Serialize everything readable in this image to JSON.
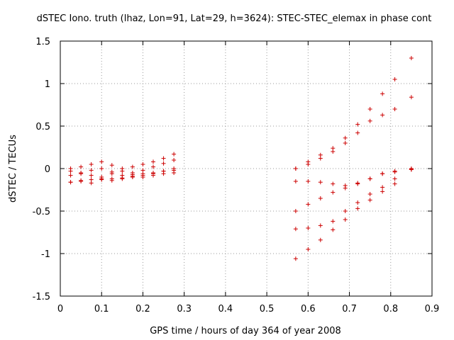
{
  "chart_data": {
    "type": "scatter",
    "title": "dSTEC Iono. truth (lhaz, Lon=91, Lat=29, h=3624): STEC-STEC_elemax in phase cont",
    "xlabel": "GPS time / hours of day 364 of year 2008",
    "ylabel": "dSTEC  / TECUs",
    "xlim": [
      0,
      0.9
    ],
    "ylim": [
      -1.5,
      1.5
    ],
    "xticks": [
      0,
      0.1,
      0.2,
      0.3,
      0.4,
      0.5,
      0.6,
      0.7,
      0.8,
      0.9
    ],
    "xtick_labels": [
      "0",
      "0.1",
      "0.2",
      "0.3",
      "0.4",
      "0.5",
      "0.6",
      "0.7",
      "0.8",
      "0.9"
    ],
    "yticks": [
      -1.5,
      -1,
      -0.5,
      0,
      0.5,
      1,
      1.5
    ],
    "ytick_labels": [
      "-1.5",
      "-1",
      "-0.5",
      "0",
      "0.5",
      "1",
      "1.5"
    ],
    "grid": true,
    "marker": "+",
    "marker_color": "#cc0000",
    "series": [
      {
        "x": [
          0.025,
          0.05,
          0.075,
          0.1,
          0.125,
          0.15,
          0.175,
          0.2,
          0.225,
          0.25,
          0.275
        ],
        "y": [
          0.0,
          0.02,
          0.05,
          0.08,
          0.04,
          0.0,
          0.02,
          0.05,
          0.08,
          0.12,
          0.17
        ]
      },
      {
        "x": [
          0.025,
          0.05,
          0.075,
          0.1,
          0.125,
          0.15,
          0.175,
          0.2,
          0.225,
          0.25,
          0.275
        ],
        "y": [
          -0.03,
          -0.06,
          -0.02,
          0.0,
          -0.04,
          -0.08,
          -0.05,
          -0.02,
          0.02,
          0.06,
          0.1
        ]
      },
      {
        "x": [
          0.025,
          0.05,
          0.075,
          0.1,
          0.125,
          0.15,
          0.175,
          0.2,
          0.225,
          0.25,
          0.275
        ],
        "y": [
          -0.08,
          -0.05,
          -0.08,
          -0.1,
          -0.06,
          -0.03,
          -0.07,
          -0.1,
          -0.06,
          -0.03,
          0.0
        ]
      },
      {
        "x": [
          0.025,
          0.05,
          0.075,
          0.1,
          0.125,
          0.15,
          0.175,
          0.2,
          0.225,
          0.25,
          0.275
        ],
        "y": [
          -0.16,
          -0.14,
          -0.17,
          -0.12,
          -0.14,
          -0.11,
          -0.09,
          -0.06,
          -0.05,
          -0.03,
          -0.02
        ]
      },
      {
        "x": [
          0.025,
          0.05,
          0.075,
          0.1,
          0.125,
          0.15,
          0.175,
          0.2,
          0.225,
          0.25,
          0.275
        ],
        "y": [
          -0.16,
          -0.15,
          -0.13,
          -0.13,
          -0.12,
          -0.12,
          -0.1,
          -0.08,
          -0.08,
          -0.06,
          -0.05
        ]
      },
      {
        "x": [
          0.57,
          0.6,
          0.63,
          0.66,
          0.69,
          0.72,
          0.75,
          0.78,
          0.81,
          0.85
        ],
        "y": [
          0.0,
          0.08,
          0.16,
          0.24,
          0.36,
          0.52,
          0.7,
          0.88,
          1.05,
          1.3
        ]
      },
      {
        "x": [
          0.57,
          0.6,
          0.63,
          0.66,
          0.69,
          0.72,
          0.75,
          0.78,
          0.81,
          0.85
        ],
        "y": [
          0.0,
          0.05,
          0.12,
          0.2,
          0.3,
          0.42,
          0.56,
          0.63,
          0.7,
          0.84
        ]
      },
      {
        "x": [
          0.57,
          0.6,
          0.63,
          0.66,
          0.69,
          0.72,
          0.75,
          0.78,
          0.81,
          0.85
        ],
        "y": [
          -0.15,
          -0.15,
          -0.16,
          -0.18,
          -0.2,
          -0.17,
          -0.12,
          -0.06,
          -0.03,
          0.0
        ]
      },
      {
        "x": [
          0.57,
          0.6,
          0.63,
          0.66,
          0.69,
          0.72,
          0.75,
          0.78,
          0.81,
          0.85
        ],
        "y": [
          -0.5,
          -0.42,
          -0.35,
          -0.28,
          -0.23,
          -0.18,
          -0.12,
          -0.06,
          -0.04,
          -0.01
        ]
      },
      {
        "x": [
          0.57,
          0.6,
          0.63,
          0.66,
          0.69,
          0.72,
          0.75,
          0.78,
          0.81,
          0.85
        ],
        "y": [
          -0.71,
          -0.7,
          -0.67,
          -0.62,
          -0.5,
          -0.4,
          -0.3,
          -0.22,
          -0.12,
          -0.01
        ]
      },
      {
        "x": [
          0.57,
          0.6,
          0.63,
          0.66,
          0.69,
          0.72,
          0.75,
          0.78,
          0.81,
          0.85
        ],
        "y": [
          -1.06,
          -0.95,
          -0.84,
          -0.72,
          -0.6,
          -0.47,
          -0.37,
          -0.27,
          -0.18,
          -0.01
        ]
      }
    ]
  }
}
